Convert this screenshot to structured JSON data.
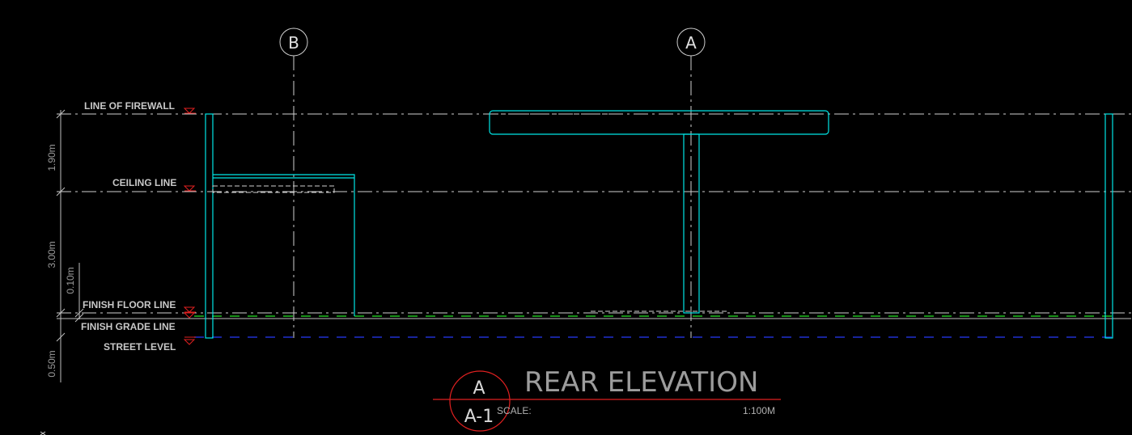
{
  "grid_markers": [
    "B",
    "A"
  ],
  "levels": {
    "firewall": "LINE OF FIREWALL",
    "ceiling": "CEILING LINE",
    "finish_floor": "FINISH FLOOR LINE",
    "finish_grade": "FINISH GRADE LINE",
    "street": "STREET LEVEL"
  },
  "dimensions": {
    "d_190": "1.90m",
    "d_300": "3.00m",
    "d_010": "0.10m",
    "d_050": "0.50m"
  },
  "title_block": {
    "title": "REAR ELEVATION",
    "detail_letter": "A",
    "sheet": "A-1",
    "scale_label": "SCALE:",
    "scale_value": "1:100M"
  },
  "colors": {
    "background": "#000000",
    "object_lines": "#00e5e5",
    "centerlines": "#d0d0d0",
    "level_markers": "#e02020",
    "grade_line": "#20c020",
    "street_line": "#2030d0"
  }
}
